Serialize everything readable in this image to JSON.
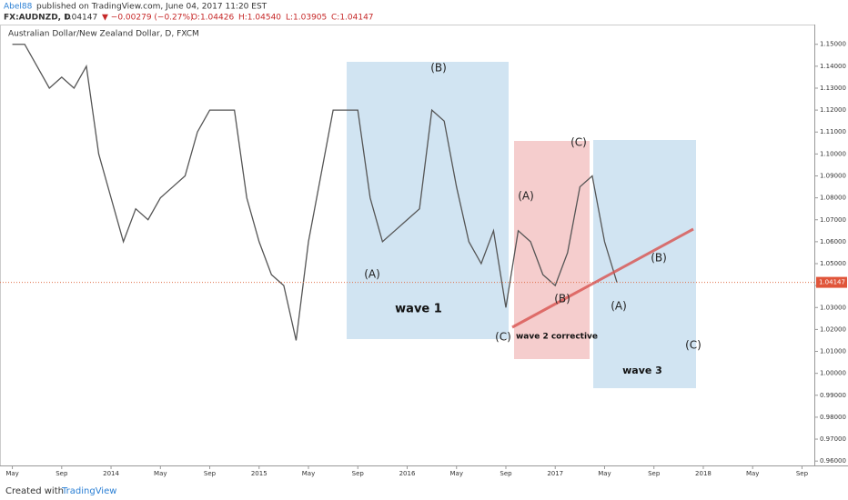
{
  "header": {
    "author": "Abel88",
    "published": "published on TradingView.com, June 04, 2017 11:20 EST",
    "symbol": "FX:AUDNZD, D",
    "last": "1.04147",
    "change": "▼ −0.00279 (−0.27%)",
    "open": "O:1.04426",
    "high": "H:1.04540",
    "low": "L:1.03905",
    "close": "C:1.04147"
  },
  "footer": {
    "created": "Created with",
    "brand": "TradingView"
  },
  "chart_data": {
    "type": "line",
    "title": "Australian Dollar/New Zealand Dollar, D, FXCM",
    "x": [
      "2013-05",
      "2013-06",
      "2013-07",
      "2013-08",
      "2013-09",
      "2013-10",
      "2013-11",
      "2013-12",
      "2014-01",
      "2014-02",
      "2014-03",
      "2014-04",
      "2014-05",
      "2014-06",
      "2014-07",
      "2014-08",
      "2014-09",
      "2014-10",
      "2014-11",
      "2014-12",
      "2015-01",
      "2015-02",
      "2015-03",
      "2015-04",
      "2015-05",
      "2015-06",
      "2015-07",
      "2015-08",
      "2015-09",
      "2015-10",
      "2015-11",
      "2015-12",
      "2016-01",
      "2016-02",
      "2016-03",
      "2016-04",
      "2016-05",
      "2016-06",
      "2016-07",
      "2016-08",
      "2016-09",
      "2016-10",
      "2016-11",
      "2016-12",
      "2017-01",
      "2017-02",
      "2017-03",
      "2017-04",
      "2017-05",
      "2017-06"
    ],
    "series": [
      {
        "name": "AUDNZD",
        "color": "#555555",
        "values": [
          1.15,
          1.15,
          1.14,
          1.13,
          1.135,
          1.13,
          1.14,
          1.1,
          1.08,
          1.06,
          1.075,
          1.07,
          1.08,
          1.085,
          1.09,
          1.11,
          1.12,
          1.12,
          1.12,
          1.08,
          1.06,
          1.045,
          1.04,
          1.015,
          1.06,
          1.09,
          1.12,
          1.12,
          1.12,
          1.08,
          1.06,
          1.065,
          1.07,
          1.075,
          1.12,
          1.115,
          1.085,
          1.06,
          1.05,
          1.065,
          1.03,
          1.065,
          1.06,
          1.045,
          1.04,
          1.055,
          1.085,
          1.09,
          1.06,
          1.04147
        ]
      }
    ],
    "xlim": [
      "2013-04",
      "2018-10"
    ],
    "xticks": [
      {
        "value": "2013-05",
        "label": "May"
      },
      {
        "value": "2013-09",
        "label": "Sep"
      },
      {
        "value": "2014-01",
        "label": "2014"
      },
      {
        "value": "2014-05",
        "label": "May"
      },
      {
        "value": "2014-09",
        "label": "Sep"
      },
      {
        "value": "2015-01",
        "label": "2015"
      },
      {
        "value": "2015-05",
        "label": "May"
      },
      {
        "value": "2015-09",
        "label": "Sep"
      },
      {
        "value": "2016-01",
        "label": "2016"
      },
      {
        "value": "2016-05",
        "label": "May"
      },
      {
        "value": "2016-09",
        "label": "Sep"
      },
      {
        "value": "2017-01",
        "label": "2017"
      },
      {
        "value": "2017-05",
        "label": "May"
      },
      {
        "value": "2017-09",
        "label": "Sep"
      },
      {
        "value": "2018-01",
        "label": "2018"
      },
      {
        "value": "2018-05",
        "label": "May"
      },
      {
        "value": "2018-09",
        "label": "Sep"
      }
    ],
    "ylim": [
      0.958,
      1.159
    ],
    "yticks": [
      {
        "value": 0.96,
        "label": "0.96000"
      },
      {
        "value": 0.97,
        "label": "0.97000"
      },
      {
        "value": 0.98,
        "label": "0.98000"
      },
      {
        "value": 0.99,
        "label": "0.99000"
      },
      {
        "value": 1.0,
        "label": "1.00000"
      },
      {
        "value": 1.01,
        "label": "1.01000"
      },
      {
        "value": 1.02,
        "label": "1.02000"
      },
      {
        "value": 1.03,
        "label": "1.03000"
      },
      {
        "value": 1.04,
        "label": "1.04000"
      },
      {
        "value": 1.05,
        "label": "1.05000"
      },
      {
        "value": 1.06,
        "label": "1.06000"
      },
      {
        "value": 1.07,
        "label": "1.07000"
      },
      {
        "value": 1.08,
        "label": "1.08000"
      },
      {
        "value": 1.09,
        "label": "1.09000"
      },
      {
        "value": 1.1,
        "label": "1.10000"
      },
      {
        "value": 1.11,
        "label": "1.11000"
      },
      {
        "value": 1.12,
        "label": "1.12000"
      },
      {
        "value": 1.13,
        "label": "1.13000"
      },
      {
        "value": 1.14,
        "label": "1.14000"
      },
      {
        "value": 1.15,
        "label": "1.15000"
      }
    ],
    "grid": false,
    "annotations": [
      "(A)",
      "(B)",
      "(C)",
      "wave 1",
      "(A)",
      "(B)",
      "(C)",
      "wave 2 corrective",
      "(A)",
      "(B)",
      "(C)",
      "wave 3"
    ]
  }
}
